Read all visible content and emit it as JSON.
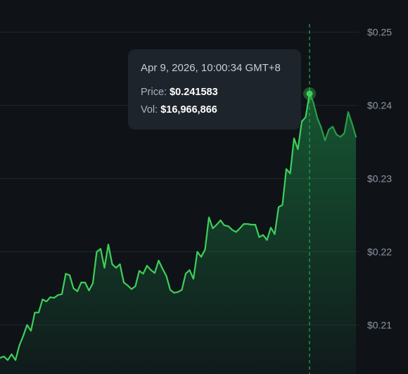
{
  "chart_data": {
    "type": "area",
    "y_tick_labels": [
      "$0.25",
      "$0.24",
      "$0.23",
      "$0.22",
      "$0.21"
    ],
    "y_ticks": [
      0.25,
      0.24,
      0.23,
      0.22,
      0.21
    ],
    "ylim": [
      0.2033,
      0.2544
    ],
    "grid": true,
    "y_axis_position": "right",
    "series": [
      {
        "values": [
          0.2055,
          0.2057,
          0.2052,
          0.206,
          0.2052,
          0.2072,
          0.2085,
          0.21,
          0.2092,
          0.2117,
          0.2117,
          0.2135,
          0.2132,
          0.2138,
          0.2137,
          0.2141,
          0.2142,
          0.217,
          0.2168,
          0.215,
          0.2146,
          0.2158,
          0.2158,
          0.2147,
          0.2157,
          0.22,
          0.2204,
          0.2178,
          0.221,
          0.2183,
          0.2178,
          0.2183,
          0.2158,
          0.2154,
          0.2149,
          0.2153,
          0.2174,
          0.217,
          0.2181,
          0.2175,
          0.2171,
          0.2188,
          0.2177,
          0.2167,
          0.2148,
          0.2144,
          0.2145,
          0.2148,
          0.217,
          0.2175,
          0.2163,
          0.22,
          0.2193,
          0.2203,
          0.2247,
          0.2232,
          0.2237,
          0.2243,
          0.2236,
          0.2235,
          0.223,
          0.2227,
          0.2232,
          0.2238,
          0.2238,
          0.2237,
          0.2237,
          0.222,
          0.2223,
          0.2216,
          0.2233,
          0.2224,
          0.2261,
          0.2264,
          0.2313,
          0.2307,
          0.2355,
          0.234,
          0.2378,
          0.2384,
          0.2416,
          0.2404,
          0.2383,
          0.237,
          0.2352,
          0.2367,
          0.2371,
          0.236,
          0.2357,
          0.2362,
          0.2391,
          0.2375,
          0.2357
        ],
        "color": "#3ecf5a"
      }
    ],
    "highlight_index": 80,
    "tooltip": {
      "time": "Apr 9, 2026, 10:00:34 GMT+8",
      "price_label": "Price:",
      "price_value": "$0.241583",
      "vol_label": "Vol:",
      "vol_value": "$16,966,866"
    },
    "colors": {
      "background": "#0f1318",
      "line": "#3ecf5a",
      "crosshair": "#27a844",
      "grid": "#1f262d",
      "tooltip_bg": "#1e242c"
    }
  }
}
